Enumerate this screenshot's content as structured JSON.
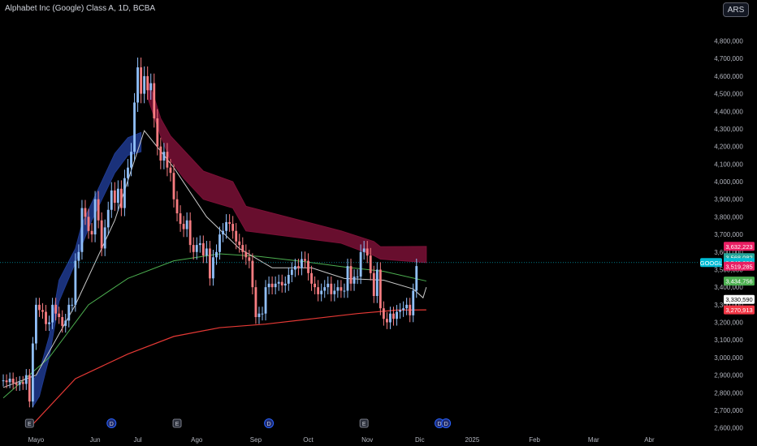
{
  "header": {
    "title": "Alphabet Inc (Google) Class A, 1D, BCBA",
    "currency": "ARS"
  },
  "colors": {
    "background": "#000000",
    "candle_up": "#90bff9",
    "candle_down": "#f77c80",
    "cloud_bear": "#7a1036",
    "cloud_bull": "#1f3a8f",
    "ma_fast": "#c9c9c9",
    "ma_mid": "#4caf50",
    "ma_slow": "#e53935"
  },
  "chart_data": {
    "type": "candlestick",
    "symbol": "GOOGL",
    "ylim": [
      2580000,
      4950000
    ],
    "y_tick_values": [
      2600000,
      2700000,
      2800000,
      2900000,
      3000000,
      3100000,
      3200000,
      3300000,
      3400000,
      3500000,
      3600000,
      3700000,
      3800000,
      3900000,
      4000000,
      4100000,
      4200000,
      4300000,
      4400000,
      4500000,
      4600000,
      4700000,
      4800000
    ],
    "y_tick_labels": [
      "2,600,000",
      "2,700,000",
      "2,800,000",
      "2,900,000",
      "3,000,000",
      "3,100,000",
      "3,200,000",
      "3,300,000",
      "3,400,000",
      "3,500,000",
      "3,600,000",
      "3,700,000",
      "3,800,000",
      "3,900,000",
      "4,000,000",
      "4,100,000",
      "4,200,000",
      "4,300,000",
      "4,400,000",
      "4,500,000",
      "4,600,000",
      "4,700,000",
      "4,800,000"
    ],
    "x_axis": [
      {
        "label": "Mayo",
        "index": 10
      },
      {
        "label": "Jun",
        "index": 28
      },
      {
        "label": "Jul",
        "index": 41
      },
      {
        "label": "Ago",
        "index": 59
      },
      {
        "label": "Sep",
        "index": 77
      },
      {
        "label": "Oct",
        "index": 93
      },
      {
        "label": "Nov",
        "index": 111
      },
      {
        "label": "Dic",
        "index": 127
      },
      {
        "label": "2025",
        "index": 143
      },
      {
        "label": "Feb",
        "index": 162
      },
      {
        "label": "Mar",
        "index": 180
      },
      {
        "label": "Abr",
        "index": 197
      }
    ],
    "x_range": [
      -1,
      212
    ],
    "closes": [
      2870000,
      2860000,
      2880000,
      2855000,
      2845000,
      2860000,
      2850000,
      2900000,
      2750000,
      3080000,
      3300000,
      3270000,
      3260000,
      3190000,
      3200000,
      3300000,
      3250000,
      3230000,
      3180000,
      3210000,
      3300000,
      3300000,
      3550000,
      3600000,
      3850000,
      3800000,
      3720000,
      3700000,
      3900000,
      3780000,
      3620000,
      3740000,
      3840000,
      3950000,
      3880000,
      3960000,
      3850000,
      4020000,
      4080000,
      4170000,
      4450000,
      4650000,
      4500000,
      4600000,
      4520000,
      4560000,
      4360000,
      4200000,
      4120000,
      4170000,
      4080000,
      4050000,
      3900000,
      3820000,
      3760000,
      3730000,
      3780000,
      3640000,
      3600000,
      3640000,
      3650000,
      3580000,
      3620000,
      3450000,
      3570000,
      3600000,
      3700000,
      3720000,
      3770000,
      3760000,
      3720000,
      3660000,
      3640000,
      3600000,
      3570000,
      3550000,
      3400000,
      3230000,
      3250000,
      3250000,
      3400000,
      3420000,
      3400000,
      3420000,
      3430000,
      3410000,
      3420000,
      3470000,
      3500000,
      3520000,
      3510000,
      3560000,
      3550000,
      3480000,
      3420000,
      3400000,
      3360000,
      3380000,
      3400000,
      3420000,
      3360000,
      3380000,
      3400000,
      3380000,
      3380000,
      3520000,
      3420000,
      3460000,
      3460000,
      3600000,
      3620000,
      3580000,
      3480000,
      3350000,
      3500000,
      3280000,
      3220000,
      3200000,
      3250000,
      3220000,
      3260000,
      3270000,
      3280000,
      3300000,
      3240000,
      3380000,
      3520000
    ],
    "ma_fast": [
      [
        0,
        2830000
      ],
      [
        10,
        2900000
      ],
      [
        22,
        3300000
      ],
      [
        34,
        3780000
      ],
      [
        43,
        4290000
      ],
      [
        52,
        4080000
      ],
      [
        62,
        3800000
      ],
      [
        72,
        3620000
      ],
      [
        82,
        3510000
      ],
      [
        94,
        3510000
      ],
      [
        104,
        3450000
      ],
      [
        116,
        3440000
      ],
      [
        125,
        3390000
      ],
      [
        128,
        3340000
      ],
      [
        129,
        3400000
      ]
    ],
    "ma_mid": [
      [
        0,
        2770000
      ],
      [
        14,
        3000000
      ],
      [
        26,
        3300000
      ],
      [
        38,
        3450000
      ],
      [
        52,
        3550000
      ],
      [
        66,
        3590000
      ],
      [
        78,
        3575000
      ],
      [
        92,
        3545000
      ],
      [
        104,
        3515000
      ],
      [
        116,
        3490000
      ],
      [
        129,
        3435000
      ]
    ],
    "ma_slow": [
      [
        9,
        2620000
      ],
      [
        22,
        2880000
      ],
      [
        38,
        3020000
      ],
      [
        52,
        3120000
      ],
      [
        66,
        3170000
      ],
      [
        80,
        3190000
      ],
      [
        94,
        3220000
      ],
      [
        108,
        3250000
      ],
      [
        120,
        3270000
      ],
      [
        129,
        3271000
      ]
    ],
    "cloud_bull": [
      [
        9,
        2720000,
        2870000
      ],
      [
        11,
        2780000,
        2920000
      ],
      [
        14,
        3000000,
        3120000
      ],
      [
        17,
        3320000,
        3440000
      ],
      [
        22,
        3540000,
        3620000
      ],
      [
        24,
        3640000,
        3760000
      ],
      [
        27,
        3780000,
        3880000
      ],
      [
        34,
        4050000,
        4160000
      ],
      [
        38,
        4150000,
        4250000
      ],
      [
        42,
        4170000,
        4280000
      ]
    ],
    "cloud_bear": [
      [
        44,
        4480000,
        4580000
      ],
      [
        46,
        4370000,
        4480000
      ],
      [
        48,
        4260000,
        4360000
      ],
      [
        51,
        4120000,
        4260000
      ],
      [
        55,
        4020000,
        4180000
      ],
      [
        61,
        3900000,
        4060000
      ],
      [
        70,
        3850000,
        4000000
      ],
      [
        74,
        3720000,
        3860000
      ],
      [
        103,
        3650000,
        3720000
      ],
      [
        113,
        3580000,
        3660000
      ],
      [
        115,
        3560000,
        3630000
      ],
      [
        129,
        3540000,
        3632000
      ]
    ],
    "event_markers": [
      {
        "label": "E",
        "index": 8
      },
      {
        "label": "D",
        "index": 33
      },
      {
        "label": "E",
        "index": 53
      },
      {
        "label": "D",
        "index": 81
      },
      {
        "label": "E",
        "index": 110
      },
      {
        "label": "D",
        "index": 133
      },
      {
        "label": "D",
        "index": 135
      }
    ],
    "price_labels": [
      {
        "text": "3,632,223",
        "value": 3632223,
        "color": "#e91e63"
      },
      {
        "text": "3,568,082",
        "value": 3568082,
        "color": "#26a69a"
      },
      {
        "text": "3,540,000",
        "value": 3540000,
        "color": "#00bcd4",
        "symbol": "GOOGL"
      },
      {
        "text": "3,519,285",
        "value": 3519285,
        "color": "#e91e63"
      },
      {
        "text": "3,434,756",
        "value": 3434756,
        "color": "#4caf50"
      },
      {
        "text": "3,330,590",
        "value": 3330590,
        "color": "#ffffff"
      },
      {
        "text": "3,270,913",
        "value": 3270913,
        "color": "#f23645"
      }
    ]
  }
}
